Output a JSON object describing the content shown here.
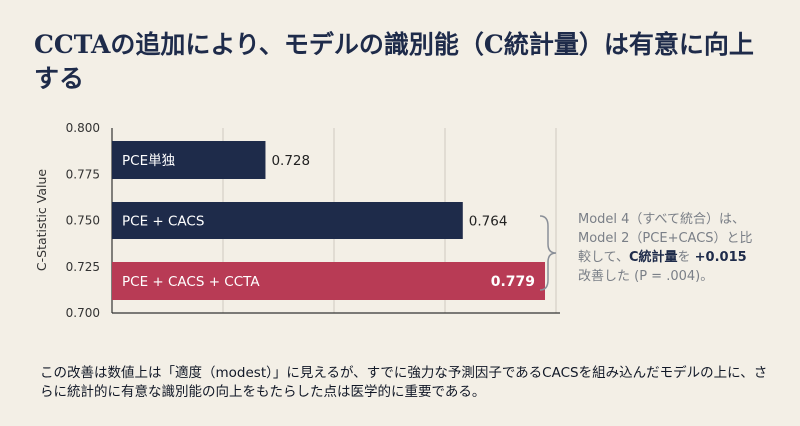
{
  "title": "CCTAの追加により、モデルの識別能（C統計量）は有意に向上する",
  "annotation": {
    "line1": "Model 4（すべて統合）は、",
    "line2": "Model 2（PCE+CACS）と比",
    "line3_pre": "較して、",
    "line3_mid": "C統計量",
    "line3_post": "を ",
    "line3_value": "+0.015",
    "line4": "改善した (P = .004)。"
  },
  "footnote": "この改善は数値上は「適度（modest）」に見えるが、すでに強力な予測因子であるCACSを組み込んだモデルの上に、さらに統計的に有意な識別能の向上をもたらした点は医学的に重要である。",
  "colors": {
    "navy": "#1e2b4a",
    "accent": "#b83b55",
    "grid": "#cfcac0"
  },
  "chart_data": {
    "type": "bar",
    "orientation": "horizontal",
    "ylabel": "C-Statistic Value",
    "xlim": [
      0.7,
      0.8
    ],
    "ticks": [
      "0.800",
      "0.775",
      "0.750",
      "0.725",
      "0.700"
    ],
    "grid": true,
    "categories": [
      "PCE単独",
      "PCE + CACS",
      "PCE + CACS + CCTA"
    ],
    "values": [
      0.728,
      0.764,
      0.779
    ],
    "value_labels": [
      "0.728",
      "0.764",
      "0.779"
    ],
    "highlight_index": 2
  }
}
